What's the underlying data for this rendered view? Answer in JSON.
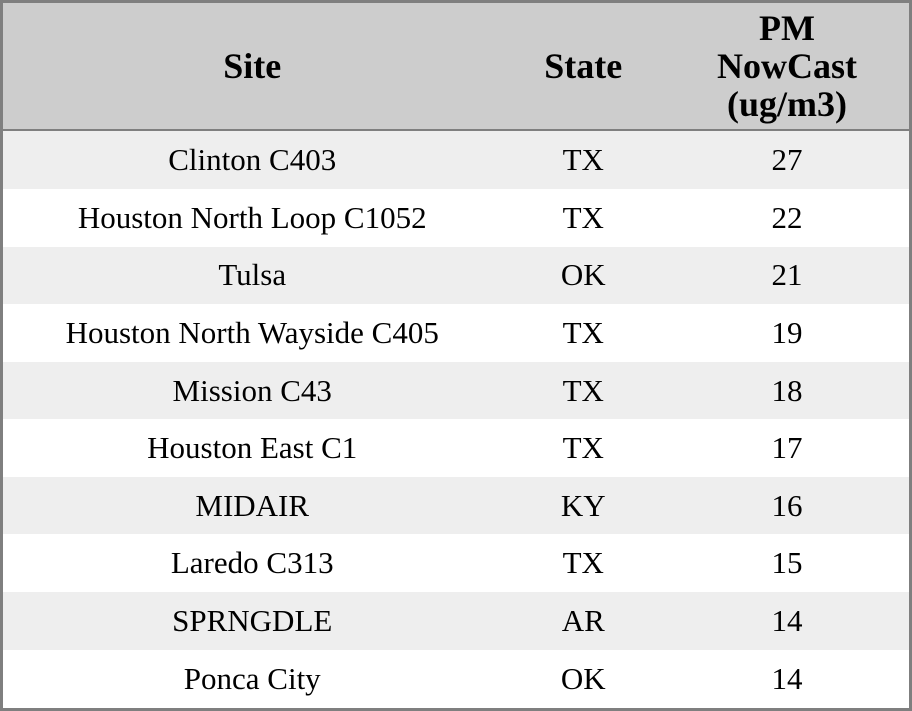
{
  "chart_data": {
    "type": "table",
    "title": "",
    "columns": [
      "Site",
      "State",
      "PM NowCast (ug/m3)"
    ],
    "header_lines": [
      [
        "Site"
      ],
      [
        "State"
      ],
      [
        "PM",
        "NowCast",
        "(ug/m3)"
      ]
    ],
    "rows": [
      [
        "Clinton C403",
        "TX",
        27
      ],
      [
        "Houston North Loop C1052",
        "TX",
        22
      ],
      [
        "Tulsa",
        "OK",
        21
      ],
      [
        "Houston North Wayside C405",
        "TX",
        19
      ],
      [
        "Mission C43",
        "TX",
        18
      ],
      [
        "Houston East C1",
        "TX",
        17
      ],
      [
        "MIDAIR",
        "KY",
        16
      ],
      [
        "Laredo C313",
        "TX",
        15
      ],
      [
        "SPRNGDLE",
        "AR",
        14
      ],
      [
        "Ponca City",
        "OK",
        14
      ]
    ],
    "layout": {
      "striped": true,
      "stripe_pattern": "first-row-shaded",
      "header_align": "center",
      "cell_align": "center"
    }
  },
  "colors": {
    "border": "#7f7f7f",
    "header_bg": "#cdcdcd",
    "row_odd_bg": "#eeeeee",
    "row_even_bg": "#ffffff",
    "text": "#000000"
  }
}
